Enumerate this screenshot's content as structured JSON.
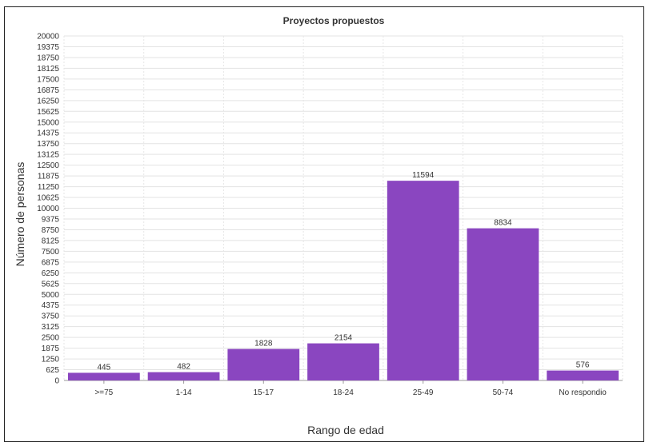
{
  "chart_data": {
    "type": "bar",
    "title": "Proyectos propuestos",
    "xlabel": "Rango de edad",
    "ylabel": "Número de personas",
    "categories": [
      ">=75",
      "1-14",
      "15-17",
      "18-24",
      "25-49",
      "50-74",
      "No respondio"
    ],
    "values": [
      445,
      482,
      1828,
      2154,
      11594,
      8834,
      576
    ],
    "ylim": [
      0,
      20000
    ],
    "yticks": [
      0,
      625,
      1250,
      1875,
      2500,
      3125,
      3750,
      4375,
      5000,
      5625,
      6250,
      6875,
      7500,
      8125,
      8750,
      9375,
      10000,
      10625,
      11250,
      11875,
      12500,
      13125,
      13750,
      14375,
      15000,
      15625,
      16250,
      16875,
      17500,
      18125,
      18750,
      19375,
      20000
    ],
    "grid": true,
    "colors": {
      "bar": "#8a46c0"
    }
  }
}
